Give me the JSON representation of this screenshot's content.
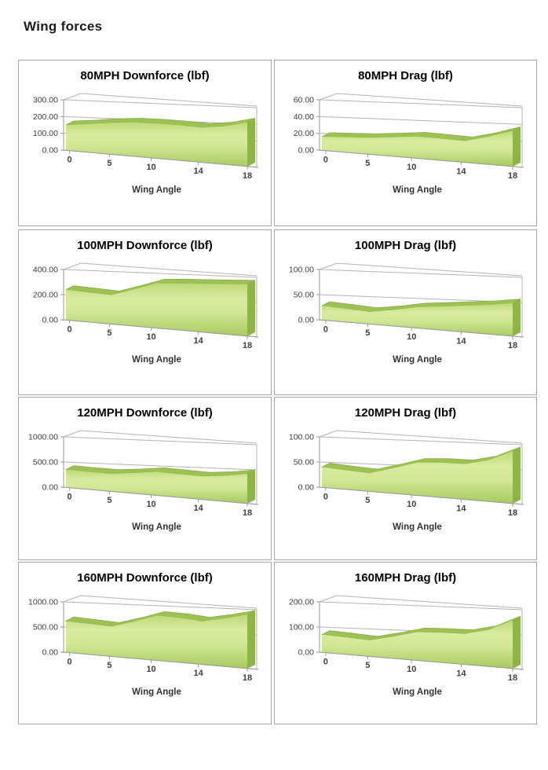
{
  "page": {
    "title": "Wing forces"
  },
  "colors": {
    "area_top": "#bcd877",
    "area_light": "#d8eb9f",
    "area_bottom": "#a6ca5f",
    "area_side": "#8fb447",
    "area_ribbon": "#9dc153",
    "area_edge": "#8aae44",
    "grid_line": "#b3b3b3",
    "axis_line": "#9a9a9a",
    "label_text": "#404040",
    "panel_border": "#a6a6a6"
  },
  "chart_data": [
    {
      "type": "area",
      "title": "80MPH Downforce (lbf)",
      "xlabel": "Wing Angle",
      "ylim": [
        0,
        300
      ],
      "ytick_labels": [
        "300.00",
        "200.00",
        "100.00",
        "0.00"
      ],
      "xtick_labels": [
        "0",
        "5",
        "10",
        "14",
        "18"
      ],
      "values": [
        150,
        160,
        172,
        178,
        175,
        170,
        162,
        172,
        192
      ]
    },
    {
      "type": "area",
      "title": "80MPH Drag (lbf)",
      "xlabel": "Wing Angle",
      "ylim": [
        0,
        60
      ],
      "ytick_labels": [
        "60.00",
        "40.00",
        "20.00",
        "0.00"
      ],
      "xtick_labels": [
        "0",
        "5",
        "10",
        "14",
        "18"
      ],
      "values": [
        16,
        17,
        18,
        20,
        22,
        21,
        20,
        25,
        31
      ]
    },
    {
      "type": "area",
      "title": "100MPH Downforce (lbf)",
      "xlabel": "Wing Angle",
      "ylim": [
        0,
        400
      ],
      "ytick_labels": [
        "400.00",
        "200.00",
        "0.00"
      ],
      "xtick_labels": [
        "0",
        "5",
        "10",
        "14",
        "18"
      ],
      "values": [
        240,
        224,
        210,
        255,
        300,
        302,
        300,
        300,
        300
      ]
    },
    {
      "type": "area",
      "title": "100MPH Drag (lbf)",
      "xlabel": "Wing Angle",
      "ylim": [
        0,
        100
      ],
      "ytick_labels": [
        "100.00",
        "50.00",
        "0.00"
      ],
      "xtick_labels": [
        "0",
        "5",
        "10",
        "14",
        "18"
      ],
      "values": [
        28,
        25,
        22,
        28,
        35,
        38,
        41,
        44,
        48
      ]
    },
    {
      "type": "area",
      "title": "120MPH Downforce (lbf)",
      "xlabel": "Wing Angle",
      "ylim": [
        0,
        1000
      ],
      "ytick_labels": [
        "1000.00",
        "500.00",
        "0.00"
      ],
      "xtick_labels": [
        "0",
        "5",
        "10",
        "14",
        "18"
      ],
      "values": [
        350,
        330,
        320,
        355,
        395,
        375,
        360,
        385,
        430
      ]
    },
    {
      "type": "area",
      "title": "120MPH Drag (lbf)",
      "xlabel": "Wing Angle",
      "ylim": [
        0,
        100
      ],
      "ytick_labels": [
        "100.00",
        "50.00",
        "0.00"
      ],
      "xtick_labels": [
        "0",
        "5",
        "10",
        "14",
        "18"
      ],
      "values": [
        40,
        36,
        33,
        44,
        55,
        56,
        55,
        62,
        76
      ]
    },
    {
      "type": "area",
      "title": "160MPH Downforce (lbf)",
      "xlabel": "Wing Angle",
      "ylim": [
        0,
        1000
      ],
      "ytick_labels": [
        "1000.00",
        "500.00",
        "0.00"
      ],
      "xtick_labels": [
        "0",
        "5",
        "10",
        "14",
        "18"
      ],
      "values": [
        620,
        580,
        540,
        640,
        750,
        720,
        670,
        720,
        780
      ]
    },
    {
      "type": "area",
      "title": "160MPH Drag (lbf)",
      "xlabel": "Wing Angle",
      "ylim": [
        0,
        200
      ],
      "ytick_labels": [
        "200.00",
        "100.00",
        "0.00"
      ],
      "xtick_labels": [
        "0",
        "5",
        "10",
        "14",
        "18"
      ],
      "values": [
        70,
        64,
        58,
        76,
        95,
        96,
        95,
        110,
        140
      ]
    }
  ]
}
